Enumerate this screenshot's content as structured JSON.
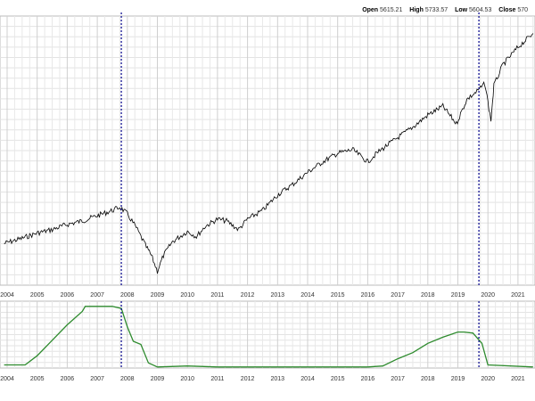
{
  "header": {
    "open_label": "Open",
    "open_value": "5615.21",
    "high_label": "High",
    "high_value": "5733.57",
    "low_label": "Low",
    "low_value": "5604.53",
    "close_label": "Close",
    "close_value": "570"
  },
  "chart_data": [
    {
      "type": "line",
      "x_ticks": [
        "2004",
        "2005",
        "2006",
        "2007",
        "2008",
        "2009",
        "2010",
        "2011",
        "2012",
        "2013",
        "2014",
        "2015",
        "2016",
        "2017",
        "2018",
        "2019",
        "2020",
        "2021"
      ],
      "series": [
        {
          "color": "#000000",
          "x": [
            2003.9,
            2004.5,
            2005.0,
            2005.5,
            2006.0,
            2006.5,
            2007.0,
            2007.5,
            2007.75,
            2008.0,
            2008.3,
            2008.6,
            2008.8,
            2009.0,
            2009.2,
            2009.5,
            2010.0,
            2010.3,
            2010.6,
            2011.0,
            2011.3,
            2011.7,
            2012.0,
            2012.5,
            2013.0,
            2013.5,
            2014.0,
            2014.5,
            2015.0,
            2015.5,
            2016.0,
            2016.3,
            2016.6,
            2017.0,
            2017.5,
            2018.0,
            2018.5,
            2018.95,
            2019.3,
            2019.6,
            2019.9,
            2020.1,
            2020.2,
            2020.5,
            2021.0,
            2021.5
          ],
          "y": [
            7.9,
            8.2,
            8.5,
            8.7,
            9.0,
            9.2,
            9.5,
            9.8,
            10.0,
            9.6,
            8.8,
            7.8,
            7.2,
            6.3,
            7.2,
            8.0,
            8.6,
            8.3,
            8.9,
            9.3,
            9.2,
            8.7,
            9.3,
            9.8,
            10.7,
            11.3,
            12.0,
            12.6,
            13.1,
            13.3,
            12.6,
            13.1,
            13.5,
            14.0,
            14.6,
            15.3,
            15.8,
            14.8,
            16.2,
            16.6,
            17.1,
            15.0,
            17.0,
            18.2,
            19.2,
            20.0
          ]
        }
      ],
      "vlines": [
        2007.8,
        2019.7
      ],
      "vline_color": "#00008b"
    },
    {
      "type": "line",
      "x_ticks": [
        "2004",
        "2005",
        "2006",
        "2007",
        "2008",
        "2009",
        "2010",
        "2011",
        "2012",
        "2013",
        "2014",
        "2015",
        "2016",
        "2017",
        "2018",
        "2019",
        "2020",
        "2021"
      ],
      "series": [
        {
          "color": "#2e8b2e",
          "x": [
            2003.9,
            2004.3,
            2004.6,
            2005.0,
            2005.5,
            2006.0,
            2006.5,
            2006.6,
            2007.0,
            2007.5,
            2007.8,
            2008.0,
            2008.2,
            2008.45,
            2008.7,
            2009.0,
            2010.0,
            2011.0,
            2012.0,
            2013.0,
            2014.0,
            2015.0,
            2016.0,
            2016.5,
            2017.0,
            2017.5,
            2018.0,
            2018.5,
            2019.0,
            2019.2,
            2019.5,
            2019.8,
            2020.0,
            2021.5
          ],
          "y": [
            3,
            3,
            3,
            12,
            27,
            42,
            55,
            60,
            60,
            60,
            58,
            40,
            26,
            23,
            5,
            1,
            2,
            1,
            1,
            1,
            1,
            1,
            1,
            2,
            9,
            15,
            24,
            30,
            35,
            35,
            34,
            24,
            3,
            1
          ]
        }
      ],
      "ylim": [
        0,
        65
      ],
      "vlines": [
        2007.8,
        2019.7
      ],
      "vline_color": "#00008b"
    }
  ]
}
